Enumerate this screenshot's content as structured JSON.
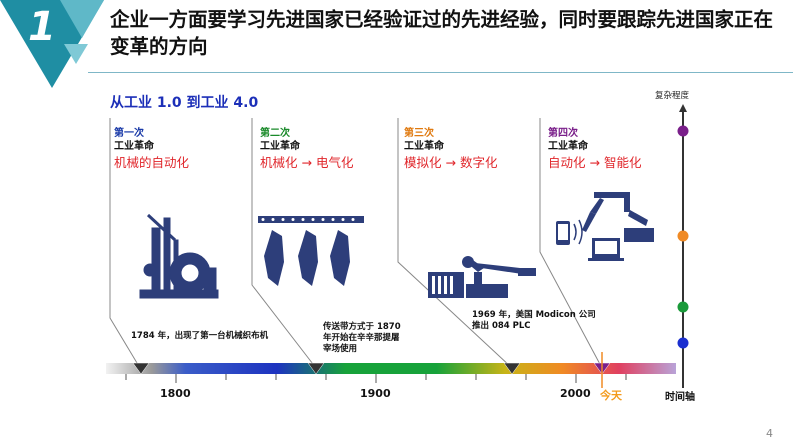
{
  "header": {
    "number": "1",
    "title": "企业一方面要学习先进国家已经验证过的先进经验，同时要跟踪先进国家正在变革的方向"
  },
  "subtitle": "从工业 1.0 到工业 4.0",
  "complexity_label": "复杂程度",
  "eras": [
    {
      "num": "第一次",
      "name": "工业革命",
      "desc_a": "机械的自动化",
      "desc_b": "",
      "color": "#1a3aa8"
    },
    {
      "num": "第二次",
      "name": "工业革命",
      "desc_a": "机械化",
      "desc_b": "电气化",
      "color": "#1a8a2a"
    },
    {
      "num": "第三次",
      "name": "工业革命",
      "desc_a": "模拟化",
      "desc_b": "数字化",
      "color": "#e07a10"
    },
    {
      "num": "第四次",
      "name": "工业革命",
      "desc_a": "自动化",
      "desc_b": "智能化",
      "color": "#7a1f8a"
    }
  ],
  "arrow_symbol": "→",
  "annotations": {
    "a1784": "1784 年，出现了第一台机械织布机",
    "a1870_l1": "传送带方式于 1870",
    "a1870_l2": "年开始在辛辛那提屠",
    "a1870_l3": "宰场使用",
    "a1969_l1": "1969 年，美国 Modicon 公司",
    "a1969_l2": "推出 084 PLC"
  },
  "timeline": {
    "ticks": [
      "1800",
      "1900",
      "2000"
    ],
    "today_label": "今天",
    "axis_label": "时间轴"
  },
  "complexity_dots": [
    "#7a1f8a",
    "#f08a24",
    "#1a9a3a",
    "#1b2fd0"
  ],
  "page_number": "4"
}
